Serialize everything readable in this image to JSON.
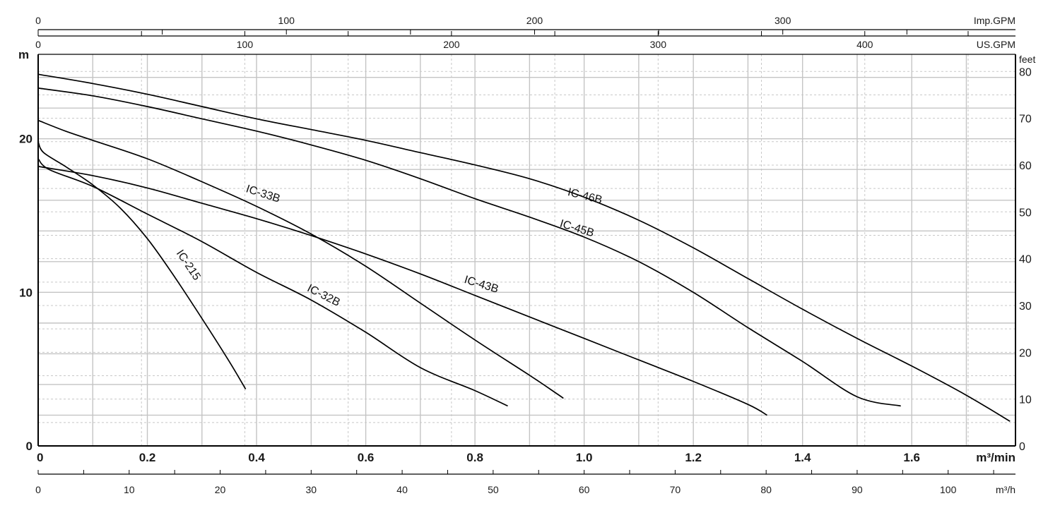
{
  "chart_data": {
    "type": "line",
    "x_units": {
      "primary": "m³/min",
      "m3h": "m³/h",
      "us_gpm": "US.GPM",
      "imp_gpm": "Imp.GPM"
    },
    "y_units": {
      "left": "m",
      "right": "feet"
    },
    "xlim_m3min": [
      0,
      1.79
    ],
    "ylim_m": [
      0,
      25.5
    ],
    "ticks": {
      "m3min": [
        "0",
        "0.2",
        "0.4",
        "0.6",
        "0.8",
        "1.0",
        "1.2",
        "1.4",
        "1.6"
      ],
      "m3h": [
        "0",
        "10",
        "20",
        "30",
        "40",
        "50",
        "60",
        "70",
        "80",
        "90",
        "100"
      ],
      "us_gpm": [
        "0",
        "100",
        "200",
        "300",
        "400"
      ],
      "imp_gpm": [
        "0",
        "100",
        "200",
        "300"
      ],
      "left_m": [
        "0",
        "10",
        "20"
      ],
      "right_feet": [
        "0",
        "10",
        "20",
        "30",
        "40",
        "50",
        "60",
        "70",
        "80"
      ]
    },
    "grid": true,
    "series": [
      {
        "name": "IC-46B",
        "x": [
          0,
          0.1,
          0.2,
          0.3,
          0.4,
          0.5,
          0.6,
          0.7,
          0.8,
          0.9,
          1.0,
          1.1,
          1.2,
          1.3,
          1.4,
          1.5,
          1.6,
          1.7,
          1.78
        ],
        "y": [
          24.2,
          23.6,
          22.9,
          22.1,
          21.3,
          20.6,
          19.9,
          19.1,
          18.3,
          17.4,
          16.2,
          14.7,
          12.9,
          10.9,
          8.9,
          7.0,
          5.2,
          3.3,
          1.6
        ]
      },
      {
        "name": "IC-45B",
        "x": [
          0,
          0.1,
          0.2,
          0.3,
          0.4,
          0.5,
          0.6,
          0.7,
          0.8,
          0.9,
          1.0,
          1.1,
          1.2,
          1.3,
          1.4,
          1.5,
          1.58
        ],
        "y": [
          23.3,
          22.8,
          22.1,
          21.3,
          20.5,
          19.6,
          18.6,
          17.4,
          16.1,
          14.9,
          13.6,
          12.0,
          10.0,
          7.7,
          5.5,
          3.2,
          2.6
        ]
      },
      {
        "name": "IC-43B",
        "x": [
          0,
          0.1,
          0.2,
          0.3,
          0.4,
          0.5,
          0.6,
          0.7,
          0.8,
          0.9,
          1.0,
          1.1,
          1.2,
          1.3,
          1.335
        ],
        "y": [
          18.2,
          17.6,
          16.8,
          15.8,
          14.8,
          13.7,
          12.5,
          11.2,
          9.8,
          8.4,
          7.0,
          5.6,
          4.2,
          2.7,
          2.0
        ]
      },
      {
        "name": "IC-33B",
        "x": [
          0,
          0.05,
          0.1,
          0.2,
          0.3,
          0.4,
          0.5,
          0.6,
          0.7,
          0.8,
          0.9,
          0.95,
          0.962
        ],
        "y": [
          21.2,
          20.5,
          19.9,
          18.7,
          17.2,
          15.6,
          13.8,
          11.7,
          9.3,
          6.9,
          4.6,
          3.4,
          3.1
        ]
      },
      {
        "name": "IC-32B",
        "x": [
          0,
          0.02,
          0.1,
          0.2,
          0.3,
          0.4,
          0.5,
          0.6,
          0.7,
          0.8,
          0.86
        ],
        "y": [
          18.7,
          18.0,
          16.9,
          15.1,
          13.3,
          11.3,
          9.5,
          7.4,
          5.1,
          3.6,
          2.6
        ]
      },
      {
        "name": "IC-215",
        "x": [
          0,
          0.01,
          0.05,
          0.1,
          0.15,
          0.2,
          0.25,
          0.3,
          0.35,
          0.38
        ],
        "y": [
          19.8,
          19.1,
          18.2,
          17.0,
          15.5,
          13.5,
          11.0,
          8.3,
          5.5,
          3.7
        ]
      }
    ]
  }
}
